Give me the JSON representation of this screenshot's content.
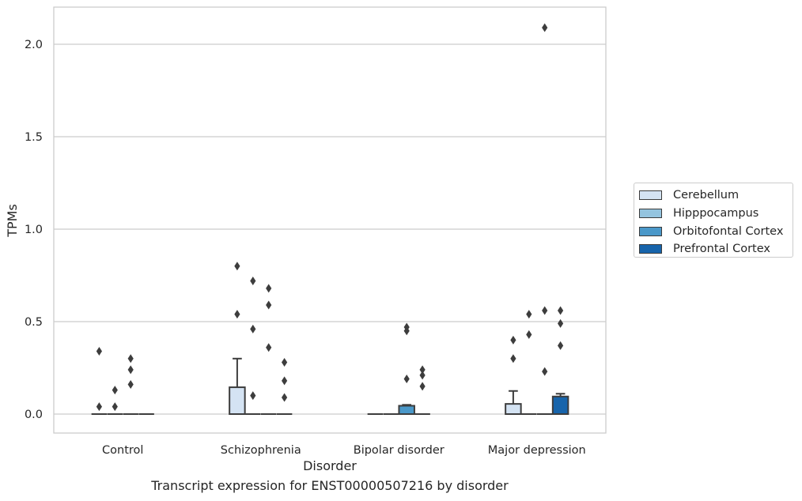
{
  "caption": "Transcript expression for ENST00000507216 by disorder",
  "chart_data": {
    "type": "box",
    "title": "",
    "xlabel": "Disorder",
    "ylabel": "TPMs",
    "ylim": [
      -0.1,
      2.2
    ],
    "yticks": [
      0.0,
      0.5,
      1.0,
      1.5,
      2.0
    ],
    "ytick_labels": [
      "0.0",
      "0.5",
      "1.0",
      "1.5",
      "2.0"
    ],
    "grid": "horizontal",
    "legend_position": "right",
    "categories": [
      "Control",
      "Schizophrenia",
      "Bipolar disorder",
      "Major depression"
    ],
    "series": [
      {
        "name": "Cerebellum",
        "color": "#d4e3f3",
        "boxes": [
          {
            "q1": 0,
            "median": 0,
            "q3": 0,
            "whislo": 0,
            "whishi": 0,
            "fliers": [
              0.34,
              0.04
            ]
          },
          {
            "q1": 0,
            "median": 0,
            "q3": 0.145,
            "whislo": 0,
            "whishi": 0.3,
            "fliers": [
              0.8,
              0.54
            ]
          },
          {
            "q1": 0,
            "median": 0,
            "q3": 0,
            "whislo": 0,
            "whishi": 0,
            "fliers": []
          },
          {
            "q1": 0,
            "median": 0,
            "q3": 0.055,
            "whislo": 0,
            "whishi": 0.125,
            "fliers": [
              0.4,
              0.3
            ]
          }
        ]
      },
      {
        "name": "Hipppocampus",
        "color": "#94c4df",
        "boxes": [
          {
            "q1": 0,
            "median": 0,
            "q3": 0,
            "whislo": 0,
            "whishi": 0,
            "fliers": [
              0.13,
              0.04
            ]
          },
          {
            "q1": 0,
            "median": 0,
            "q3": 0,
            "whislo": 0,
            "whishi": 0,
            "fliers": [
              0.72,
              0.46,
              0.1
            ]
          },
          {
            "q1": 0,
            "median": 0,
            "q3": 0,
            "whislo": 0,
            "whishi": 0,
            "fliers": []
          },
          {
            "q1": 0,
            "median": 0,
            "q3": 0,
            "whislo": 0,
            "whishi": 0,
            "fliers": [
              0.54,
              0.43
            ]
          }
        ]
      },
      {
        "name": "Orbitofontal Cortex",
        "color": "#4a98c9",
        "boxes": [
          {
            "q1": 0,
            "median": 0,
            "q3": 0,
            "whislo": 0,
            "whishi": 0,
            "fliers": [
              0.3,
              0.24,
              0.16
            ]
          },
          {
            "q1": 0,
            "median": 0,
            "q3": 0,
            "whislo": 0,
            "whishi": 0,
            "fliers": [
              0.68,
              0.59,
              0.36
            ]
          },
          {
            "q1": 0,
            "median": 0,
            "q3": 0.045,
            "whislo": 0,
            "whishi": 0.05,
            "fliers": [
              0.47,
              0.45,
              0.19
            ]
          },
          {
            "q1": 0,
            "median": 0,
            "q3": 0,
            "whislo": 0,
            "whishi": 0,
            "fliers": [
              2.09,
              0.56,
              0.23
            ]
          }
        ]
      },
      {
        "name": "Prefrontal Cortex",
        "color": "#1764ab",
        "boxes": [
          {
            "q1": 0,
            "median": 0,
            "q3": 0,
            "whislo": 0,
            "whishi": 0,
            "fliers": []
          },
          {
            "q1": 0,
            "median": 0,
            "q3": 0,
            "whislo": 0,
            "whishi": 0,
            "fliers": [
              0.28,
              0.18,
              0.09
            ]
          },
          {
            "q1": 0,
            "median": 0,
            "q3": 0,
            "whislo": 0,
            "whishi": 0,
            "fliers": [
              0.24,
              0.21,
              0.15
            ]
          },
          {
            "q1": 0,
            "median": 0,
            "q3": 0.095,
            "whislo": 0,
            "whishi": 0.11,
            "fliers": [
              0.56,
              0.49,
              0.37
            ]
          }
        ]
      }
    ]
  }
}
